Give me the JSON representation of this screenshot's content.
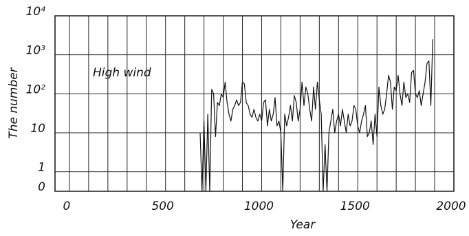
{
  "chart_data": {
    "type": "line",
    "annotation": "High wind",
    "xlabel": "Year",
    "ylabel": "The number",
    "yscale": "log",
    "grid": true,
    "color": "#111111",
    "xlim": [
      -75,
      2000
    ],
    "xticks": [
      0,
      500,
      1000,
      1500,
      2000
    ],
    "xgridlines": [
      0,
      100,
      200,
      300,
      400,
      500,
      600,
      700,
      800,
      900,
      1000,
      1100,
      1200,
      1300,
      1400,
      1500,
      1600,
      1700,
      1800,
      1900
    ],
    "ylim": [
      0,
      10000
    ],
    "yticks": [
      0,
      1,
      10,
      {
        "value": 100,
        "label": "10²"
      },
      {
        "value": 1000,
        "label": "10³"
      },
      {
        "value": 10000,
        "label": "10⁴"
      }
    ],
    "x": [
      680,
      690,
      700,
      710,
      720,
      730,
      740,
      750,
      760,
      770,
      780,
      790,
      800,
      810,
      820,
      830,
      840,
      850,
      860,
      870,
      880,
      890,
      900,
      910,
      920,
      930,
      940,
      950,
      960,
      970,
      980,
      990,
      1000,
      1010,
      1020,
      1030,
      1040,
      1050,
      1060,
      1070,
      1080,
      1090,
      1100,
      1110,
      1120,
      1130,
      1140,
      1150,
      1160,
      1170,
      1180,
      1190,
      1200,
      1210,
      1220,
      1230,
      1240,
      1250,
      1260,
      1270,
      1280,
      1290,
      1300,
      1310,
      1320,
      1330,
      1340,
      1350,
      1360,
      1370,
      1380,
      1390,
      1400,
      1410,
      1420,
      1430,
      1440,
      1450,
      1460,
      1470,
      1480,
      1490,
      1500,
      1510,
      1520,
      1530,
      1540,
      1550,
      1560,
      1570,
      1580,
      1590,
      1600,
      1610,
      1620,
      1630,
      1640,
      1650,
      1660,
      1670,
      1680,
      1690,
      1700,
      1710,
      1720,
      1730,
      1740,
      1750,
      1760,
      1770,
      1780,
      1790,
      1800,
      1810,
      1820,
      1830,
      1840,
      1850,
      1860,
      1870,
      1880,
      1890
    ],
    "values": [
      10,
      0,
      20,
      0,
      30,
      0,
      130,
      100,
      8,
      60,
      50,
      100,
      80,
      200,
      60,
      30,
      20,
      40,
      50,
      70,
      50,
      60,
      200,
      180,
      60,
      50,
      30,
      25,
      40,
      25,
      20,
      30,
      20,
      60,
      70,
      15,
      40,
      20,
      30,
      80,
      15,
      20,
      10,
      0,
      30,
      15,
      25,
      50,
      20,
      90,
      60,
      20,
      40,
      200,
      50,
      150,
      100,
      40,
      20,
      150,
      40,
      200,
      70,
      30,
      0,
      5,
      0,
      10,
      20,
      40,
      10,
      20,
      30,
      15,
      40,
      20,
      10,
      30,
      15,
      20,
      50,
      40,
      15,
      10,
      20,
      30,
      50,
      8,
      10,
      20,
      5,
      30,
      8,
      150,
      50,
      30,
      40,
      100,
      300,
      200,
      40,
      150,
      120,
      300,
      100,
      50,
      200,
      80,
      100,
      60,
      350,
      400,
      100,
      80,
      120,
      50,
      100,
      200,
      600,
      700,
      50,
      2500
    ]
  }
}
